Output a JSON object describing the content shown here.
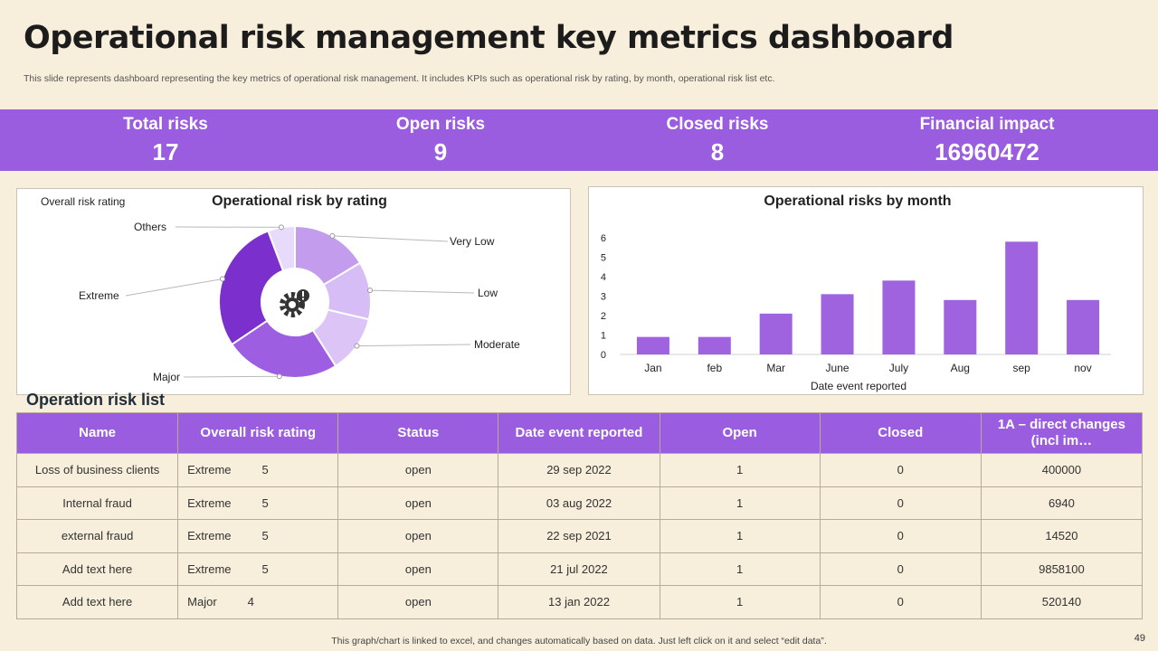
{
  "header": {
    "title": "Operational risk management key metrics dashboard",
    "subtitle": "This slide represents dashboard representing the key metrics of operational risk management. It includes KPIs such as operational risk by rating, by month, operational risk list etc."
  },
  "kpis": [
    {
      "label": "Total risks",
      "value": "17"
    },
    {
      "label": "Open risks",
      "value": "9"
    },
    {
      "label": "Closed risks",
      "value": "8"
    },
    {
      "label": "Financial impact",
      "value": "16960472"
    }
  ],
  "colors": {
    "accent": "#9b5de0",
    "background": "#f7eedb"
  },
  "chart_data": [
    {
      "type": "pie",
      "title": "Operational risk  by rating",
      "legend_title": "Overall risk rating",
      "center_icon": "gear-warning-icon",
      "categories": [
        "Very Low",
        "Low",
        "Moderate",
        "Major",
        "Extreme",
        "Others"
      ],
      "values": [
        2,
        1.5,
        1.5,
        3,
        3.5,
        0.7
      ],
      "colors": [
        "#c39cee",
        "#d7bdf5",
        "#dcc5f6",
        "#9d5ee1",
        "#7b2fcc",
        "#e8dafa"
      ]
    },
    {
      "type": "bar",
      "title": "Operational risks  by month",
      "categories": [
        "Jan",
        "feb",
        "Mar",
        "June",
        "July",
        "Aug",
        "sep",
        "nov"
      ],
      "values": [
        0.9,
        0.9,
        2.1,
        3.1,
        3.8,
        2.8,
        5.8,
        2.8
      ],
      "xlabel": "Date  event  reported",
      "ylabel": "",
      "ylim": [
        0,
        6
      ],
      "yticks": [
        "0",
        "1",
        "2",
        "3",
        "4",
        "5",
        "6"
      ],
      "bar_color": "#a063e0"
    }
  ],
  "risk_list": {
    "title": "Operation risk list",
    "columns": [
      "Name",
      "Overall risk rating",
      "Status",
      "Date event reported",
      "Open",
      "Closed",
      "1A – direct changes (incl im…"
    ],
    "rows": [
      {
        "name": "Loss of business clients",
        "rating": "Extreme",
        "rating_num": "5",
        "status": "open",
        "date": "29 sep 2022",
        "open": "1",
        "closed": "0",
        "impact": "400000"
      },
      {
        "name": "Internal  fraud",
        "rating": "Extreme",
        "rating_num": "5",
        "status": "open",
        "date": "03 aug 2022",
        "open": "1",
        "closed": "0",
        "impact": "6940"
      },
      {
        "name": "external fraud",
        "rating": "Extreme",
        "rating_num": "5",
        "status": "open",
        "date": "22 sep 2021",
        "open": "1",
        "closed": "0",
        "impact": "14520"
      },
      {
        "name": "Add text here",
        "rating": "Extreme",
        "rating_num": "5",
        "status": "open",
        "date": "21 jul 2022",
        "open": "1",
        "closed": "0",
        "impact": "9858100"
      },
      {
        "name": "Add text here",
        "rating": "Major",
        "rating_num": "4",
        "status": "open",
        "date": "13 jan 2022",
        "open": "1",
        "closed": "0",
        "impact": "520140"
      }
    ]
  },
  "footer": {
    "note": "This graph/chart is linked to excel,  and changes automatically based on data. Just left click on it and select “edit data”.",
    "page_number": "49"
  }
}
